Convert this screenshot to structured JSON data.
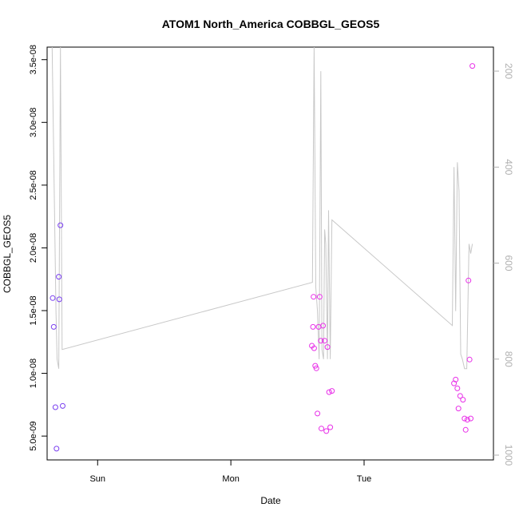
{
  "chart_data": {
    "type": "scatter",
    "title": "ATOM1 North_America COBBGL_GEOS5",
    "xlabel": "Date",
    "ylabel": "COBBGL_GEOS5",
    "x_units": "hours since Sun 00:00",
    "x_ticks": [
      {
        "label": "Sun",
        "x": 0
      },
      {
        "label": "Mon",
        "x": 24
      },
      {
        "label": "Tue",
        "x": 48
      }
    ],
    "xlim": [
      -9.1,
      71.3
    ],
    "ylim": [
      3.1e-09,
      3.6e-08
    ],
    "y_ticks": [
      {
        "label": "5.0e-09",
        "y": 5e-09
      },
      {
        "label": "1.0e-08",
        "y": 1e-08
      },
      {
        "label": "1.5e-08",
        "y": 1.5e-08
      },
      {
        "label": "2.0e-08",
        "y": 2e-08
      },
      {
        "label": "2.5e-08",
        "y": 2.5e-08
      },
      {
        "label": "3.0e-08",
        "y": 3e-08
      },
      {
        "label": "3.5e-08",
        "y": 3.5e-08
      }
    ],
    "y2_reversed": true,
    "y2lim": [
      1010,
      150
    ],
    "y2_ticks": [
      {
        "label": "200",
        "y": 200
      },
      {
        "label": "400",
        "y": 400
      },
      {
        "label": "600",
        "y": 600
      },
      {
        "label": "800",
        "y": 800
      },
      {
        "label": "1000",
        "y": 1000
      }
    ],
    "grid": false,
    "colors": {
      "points_early": "#7a3ff0",
      "points_late": "#e830e8",
      "pressure_line": "#c8c8c8",
      "right_axis": "#b0b0b0"
    },
    "series": [
      {
        "points": [
          {
            "x": -8.1,
            "y": 1.6e-08
          },
          {
            "x": -7.9,
            "y": 1.37e-08
          },
          {
            "x": -7.6,
            "y": 7.3e-09
          },
          {
            "x": -7.4,
            "y": 4e-09
          },
          {
            "x": -7.0,
            "y": 1.77e-08
          },
          {
            "x": -6.9,
            "y": 1.59e-08
          },
          {
            "x": -6.7,
            "y": 2.18e-08
          },
          {
            "x": -6.3,
            "y": 7.4e-09
          }
        ]
      },
      {
        "points": [
          {
            "x": 38.6,
            "y": 1.22e-08
          },
          {
            "x": 38.8,
            "y": 1.37e-08
          },
          {
            "x": 38.9,
            "y": 1.61e-08
          },
          {
            "x": 39.0,
            "y": 1.2e-08
          },
          {
            "x": 39.2,
            "y": 1.06e-08
          },
          {
            "x": 39.4,
            "y": 1.04e-08
          },
          {
            "x": 39.6,
            "y": 6.8e-09
          },
          {
            "x": 39.8,
            "y": 1.37e-08
          },
          {
            "x": 40.0,
            "y": 1.61e-08
          },
          {
            "x": 40.2,
            "y": 1.26e-08
          },
          {
            "x": 40.3,
            "y": 5.6e-09
          },
          {
            "x": 40.6,
            "y": 1.38e-08
          },
          {
            "x": 40.9,
            "y": 1.26e-08
          },
          {
            "x": 41.2,
            "y": 5.4e-09
          },
          {
            "x": 41.4,
            "y": 1.21e-08
          },
          {
            "x": 41.7,
            "y": 8.5e-09
          },
          {
            "x": 41.9,
            "y": 5.7e-09
          },
          {
            "x": 42.2,
            "y": 8.6e-09
          },
          {
            "x": 64.2,
            "y": 9.2e-09
          },
          {
            "x": 64.5,
            "y": 9.5e-09
          },
          {
            "x": 64.8,
            "y": 8.8e-09
          },
          {
            "x": 65.0,
            "y": 7.2e-09
          },
          {
            "x": 65.3,
            "y": 8.2e-09
          },
          {
            "x": 65.8,
            "y": 7.9e-09
          },
          {
            "x": 66.1,
            "y": 6.4e-09
          },
          {
            "x": 66.3,
            "y": 5.5e-09
          },
          {
            "x": 66.6,
            "y": 6.3e-09
          },
          {
            "x": 66.8,
            "y": 1.74e-08
          },
          {
            "x": 67.0,
            "y": 1.11e-08
          },
          {
            "x": 67.2,
            "y": 6.4e-09
          },
          {
            "x": 67.5,
            "y": 3.45e-08
          }
        ]
      }
    ],
    "pressure_line": [
      {
        "x": -8.2,
        "y2": 150
      },
      {
        "x": -7.5,
        "y2": 700
      },
      {
        "x": -7.3,
        "y2": 800
      },
      {
        "x": -7.0,
        "y2": 820
      },
      {
        "x": -6.7,
        "y2": 150
      },
      {
        "x": -6.4,
        "y2": 780
      },
      {
        "x": 38.7,
        "y2": 640
      },
      {
        "x": 39.0,
        "y2": 150
      },
      {
        "x": 39.3,
        "y2": 650
      },
      {
        "x": 39.6,
        "y2": 700
      },
      {
        "x": 39.9,
        "y2": 800
      },
      {
        "x": 40.2,
        "y2": 200
      },
      {
        "x": 40.4,
        "y2": 780
      },
      {
        "x": 40.7,
        "y2": 800
      },
      {
        "x": 40.9,
        "y2": 530
      },
      {
        "x": 41.1,
        "y2": 560
      },
      {
        "x": 41.4,
        "y2": 800
      },
      {
        "x": 41.6,
        "y2": 490
      },
      {
        "x": 41.9,
        "y2": 800
      },
      {
        "x": 42.2,
        "y2": 510
      },
      {
        "x": 63.9,
        "y2": 730
      },
      {
        "x": 64.2,
        "y2": 400
      },
      {
        "x": 64.5,
        "y2": 700
      },
      {
        "x": 64.8,
        "y2": 390
      },
      {
        "x": 65.1,
        "y2": 450
      },
      {
        "x": 65.4,
        "y2": 790
      },
      {
        "x": 65.7,
        "y2": 800
      },
      {
        "x": 66.1,
        "y2": 820
      },
      {
        "x": 66.5,
        "y2": 820
      },
      {
        "x": 66.9,
        "y2": 560
      },
      {
        "x": 67.2,
        "y2": 580
      },
      {
        "x": 67.5,
        "y2": 560
      }
    ]
  }
}
